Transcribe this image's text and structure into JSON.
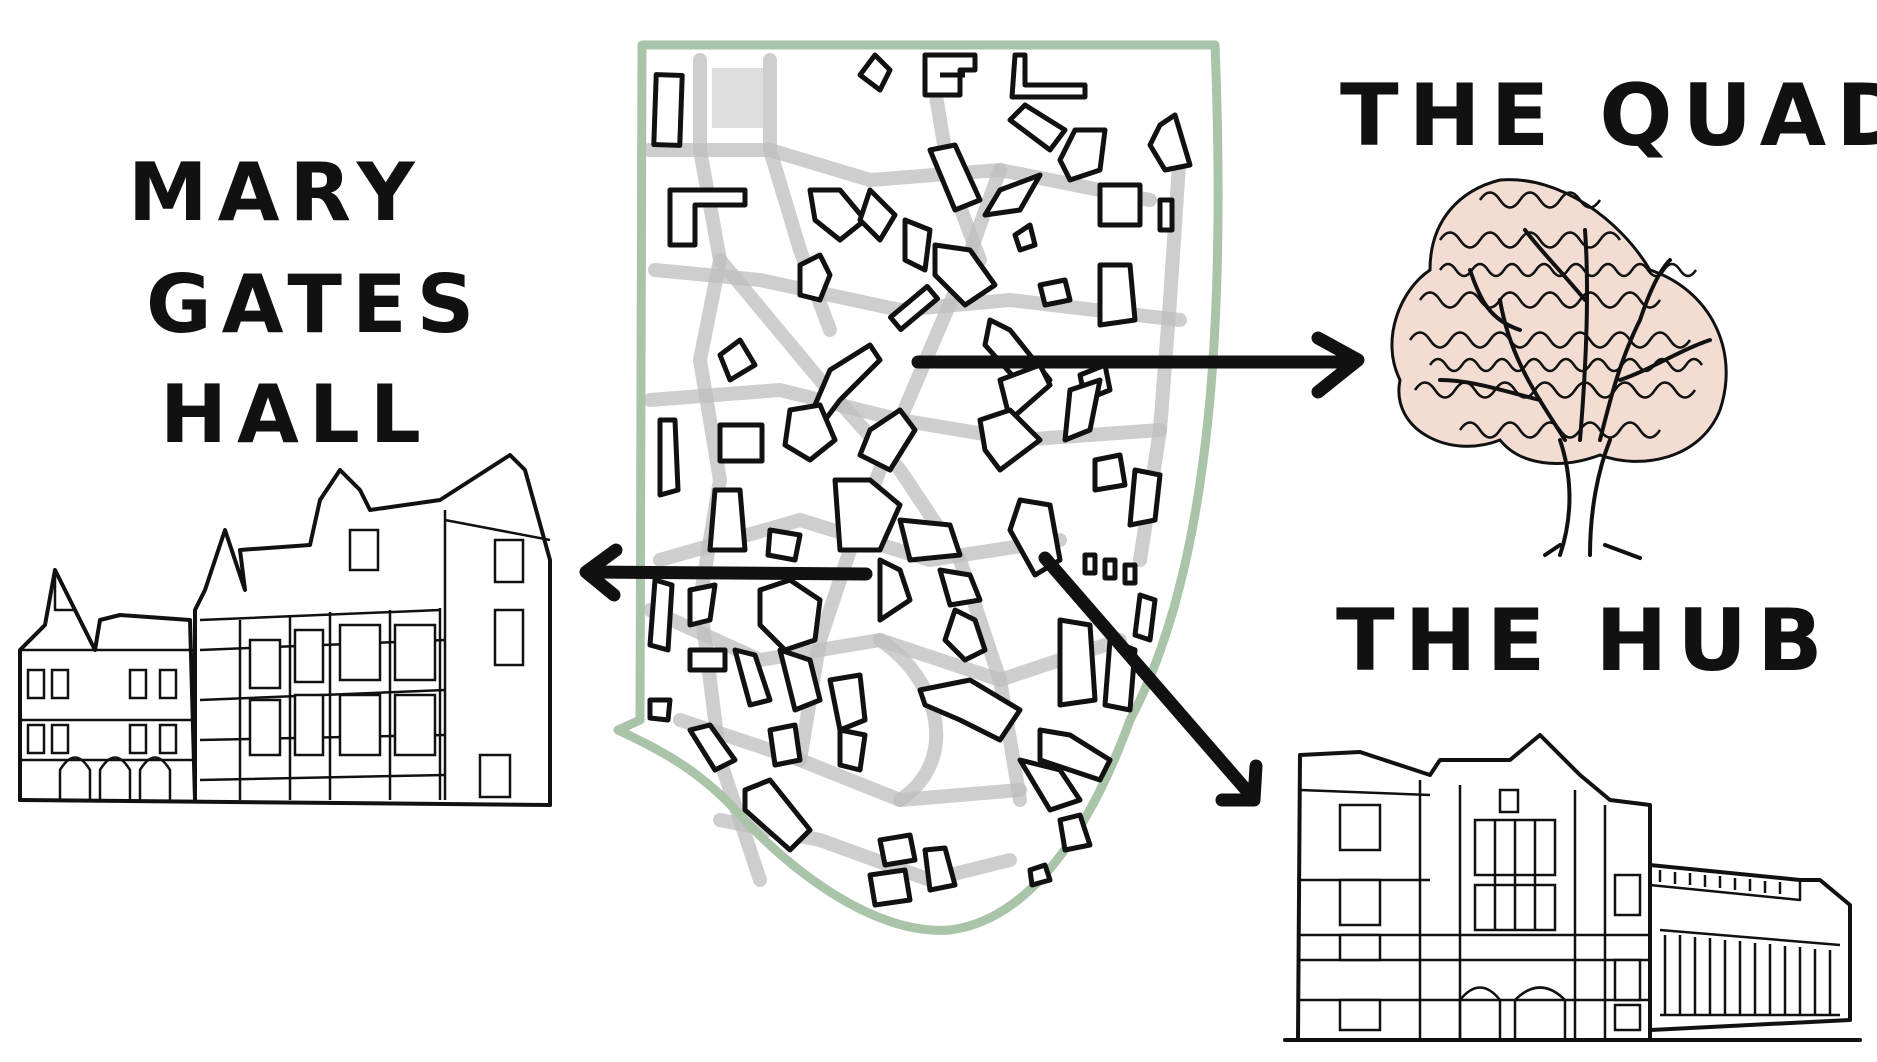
{
  "labels": {
    "mary_gates_hall": [
      "MARY",
      "GATES",
      "HALL"
    ],
    "the_quad": "THE QUAD",
    "the_hub": "THE HUB"
  },
  "colors": {
    "campus_boundary": "#a9c4a9",
    "paths": "#bdbdbd",
    "tree_canopy": "#f3ddd3",
    "ink": "#111111"
  },
  "icons": {
    "mary_gates_hall": "gothic-building-sketch",
    "the_quad": "cherry-tree-sketch",
    "the_hub": "brick-building-sketch"
  }
}
